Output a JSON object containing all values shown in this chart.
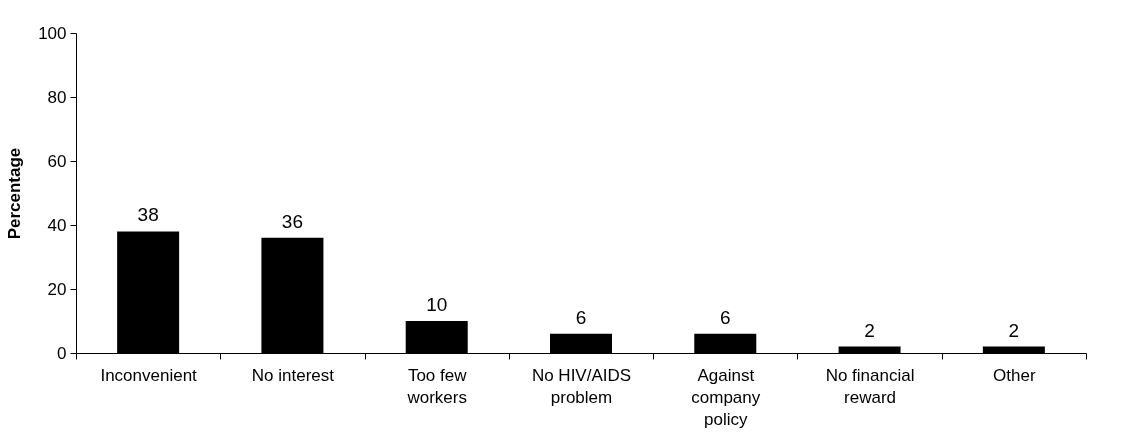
{
  "chart_data": {
    "type": "bar",
    "ylabel": "Percentage",
    "categories": [
      "Inconvenient",
      "No interest",
      "Too few workers",
      "No HIV/AIDS problem",
      "Against company policy",
      "No financial reward",
      "Other"
    ],
    "values": [
      38,
      36,
      10,
      6,
      6,
      2,
      2
    ],
    "color": "#000000",
    "ylim": [
      0,
      100
    ],
    "yticks": [
      0,
      20,
      40,
      60,
      80,
      100
    ],
    "grid": false,
    "data_labels": true
  }
}
